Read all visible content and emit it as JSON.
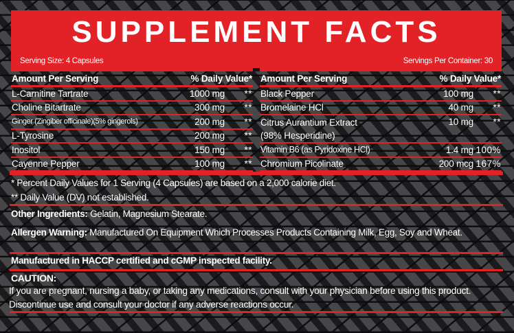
{
  "colors": {
    "accent_red": "#e32227",
    "background": "#19191b",
    "pattern_shape": "#47474a",
    "text": "#ffffff"
  },
  "header": {
    "title": "SUPPLEMENT FACTS",
    "serving_size": "Serving Size: 4 Capsules",
    "servings_per_container": "Servings Per Container: 30"
  },
  "table": {
    "left": {
      "amount_header": "Amount Per Serving",
      "dv_header": "% Daily Value*",
      "rows": [
        {
          "name": "L-Carnitine Tartrate",
          "amount": "1000 mg",
          "dv": "**"
        },
        {
          "name": "Choline Bitartrate",
          "amount": "300 mg",
          "dv": "**"
        },
        {
          "name": "Ginger (Zingiber officinale)(5% gingerols)",
          "amount": "200 mg",
          "dv": "**"
        },
        {
          "name": "L-Tyrosine",
          "amount": "200 mg",
          "dv": "**"
        },
        {
          "name": "Inositol",
          "amount": "150 mg",
          "dv": "**"
        },
        {
          "name": "Cayenne Pepper",
          "amount": "100 mg",
          "dv": "**"
        }
      ]
    },
    "right": {
      "amount_header": "Amount Per Serving",
      "dv_header": "% Daily Value*",
      "rows": [
        {
          "name": "Black Pepper",
          "amount": "100 mg",
          "dv": "**"
        },
        {
          "name": "Bromelaine HCl",
          "amount": "40 mg",
          "dv": "**"
        },
        {
          "name": "Citrus Aurantium Extract",
          "name2": "(98% Hesperidine)",
          "amount": "10 mg",
          "dv": "**"
        },
        {
          "name": "Vitamin B6 (as Pyridoxine HCl)",
          "amount": "1.4 mg",
          "dv": "100%"
        },
        {
          "name": "Chromium Picolinate",
          "amount": "200 mcg",
          "dv": "167%"
        }
      ]
    }
  },
  "footnotes": {
    "daily_values": "* Percent Daily Values for 1 Serving (4 Capsules) are based on a 2,000 calorie diet.",
    "not_established": "** Daily Value (DV) not established."
  },
  "other_ingredients": {
    "label": "Other Ingredients:",
    "text": "Gelatin, Magnesium Stearate."
  },
  "allergen_warning": {
    "label": "Allergen Warning:",
    "text": "Manufactured On Equipment Which Processes Products Containing Milk, Egg, Soy and Wheat."
  },
  "manufactured_note": "Manufactured in HACCP certified and cGMP inspected facility.",
  "caution": {
    "label": "CAUTION:",
    "text": "If you are pregnant, nursing a baby, or taking any medications, consult with your physician before using this product. Discontinue use and consult your doctor if any adverse reactions occur."
  }
}
